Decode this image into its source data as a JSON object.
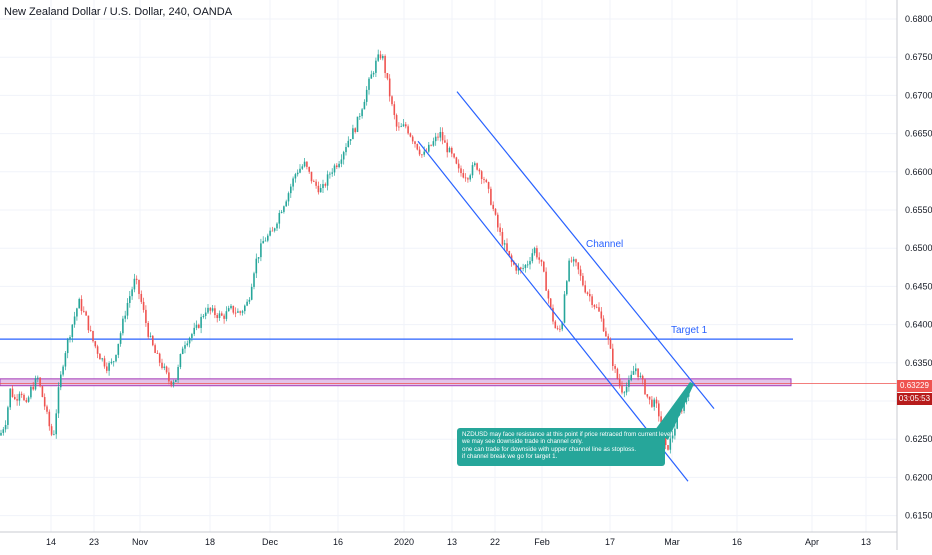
{
  "chart": {
    "title": "New Zealand Dollar / U.S. Dollar, 240, OANDA",
    "current_price_label": "0.63229",
    "countdown_label": "03:05:53",
    "channel_label": "Channel",
    "target_label": "Target 1",
    "annotation_lines": [
      "NZDUSD may face resistance at this point if price retraced from current level",
      "we may see downside trade in channel only.",
      "one can trade for downside with upper channel line as stoploss.",
      "if channel break we go for target 1."
    ]
  },
  "colors": {
    "up": "#26a69a",
    "down": "#ef5350",
    "channel": "#2962ff",
    "target": "#2962ff",
    "zone_fill": "#e1bee7",
    "zone_border": "#9c27b0",
    "price_tag": "#ef5350",
    "countdown_tag": "#b71c1c",
    "annotation_bg": "#26a69a"
  },
  "chart_data": {
    "type": "candlestick",
    "y_ticks": [
      "0.68000",
      "0.67500",
      "0.67000",
      "0.66500",
      "0.66000",
      "0.65500",
      "0.65000",
      "0.64500",
      "0.64000",
      "0.63500",
      "0.63000",
      "0.62500",
      "0.62000",
      "0.61500"
    ],
    "y_range": [
      0.6135,
      0.6835
    ],
    "x_ticks": [
      "14",
      "23",
      "Nov",
      "18",
      "Dec",
      "16",
      "2020",
      "13",
      "22",
      "Feb",
      "17",
      "Mar",
      "16",
      "Apr",
      "13"
    ],
    "path": [
      [
        0,
        0.6255
      ],
      [
        0.7,
        0.6275
      ],
      [
        1.2,
        0.6315
      ],
      [
        1.8,
        0.63
      ],
      [
        2.4,
        0.6318
      ],
      [
        3.0,
        0.629
      ],
      [
        3.6,
        0.6315
      ],
      [
        4.4,
        0.633
      ],
      [
        5.2,
        0.6295
      ],
      [
        5.8,
        0.6265
      ],
      [
        6.2,
        0.625
      ],
      [
        6.8,
        0.631
      ],
      [
        7.5,
        0.636
      ],
      [
        8.3,
        0.6395
      ],
      [
        9.2,
        0.643
      ],
      [
        10.0,
        0.641
      ],
      [
        10.8,
        0.638
      ],
      [
        11.6,
        0.636
      ],
      [
        12.5,
        0.6345
      ],
      [
        13.2,
        0.635
      ],
      [
        14.0,
        0.6385
      ],
      [
        14.8,
        0.6425
      ],
      [
        15.8,
        0.646
      ],
      [
        16.6,
        0.6425
      ],
      [
        17.4,
        0.6385
      ],
      [
        18.2,
        0.636
      ],
      [
        19.0,
        0.6345
      ],
      [
        19.8,
        0.6325
      ],
      [
        20.6,
        0.633
      ],
      [
        21.4,
        0.6375
      ],
      [
        22.2,
        0.6385
      ],
      [
        23.0,
        0.6395
      ],
      [
        24.0,
        0.642
      ],
      [
        25.0,
        0.6415
      ],
      [
        26.0,
        0.641
      ],
      [
        27.0,
        0.642
      ],
      [
        28.0,
        0.6415
      ],
      [
        29.0,
        0.643
      ],
      [
        29.8,
        0.648
      ],
      [
        30.8,
        0.651
      ],
      [
        31.8,
        0.652
      ],
      [
        32.6,
        0.6545
      ],
      [
        33.6,
        0.657
      ],
      [
        34.6,
        0.66
      ],
      [
        35.6,
        0.661
      ],
      [
        36.6,
        0.6585
      ],
      [
        37.6,
        0.6575
      ],
      [
        38.6,
        0.66
      ],
      [
        39.6,
        0.6615
      ],
      [
        40.6,
        0.664
      ],
      [
        41.6,
        0.666
      ],
      [
        42.4,
        0.669
      ],
      [
        43.2,
        0.672
      ],
      [
        44.0,
        0.6745
      ],
      [
        44.6,
        0.6755
      ],
      [
        45.2,
        0.672
      ],
      [
        45.8,
        0.6685
      ],
      [
        46.4,
        0.6655
      ],
      [
        47.4,
        0.666
      ],
      [
        48.4,
        0.664
      ],
      [
        49.4,
        0.662
      ],
      [
        50.4,
        0.6635
      ],
      [
        51.4,
        0.665
      ],
      [
        52.0,
        0.6635
      ],
      [
        52.8,
        0.662
      ],
      [
        53.6,
        0.66
      ],
      [
        54.6,
        0.6595
      ],
      [
        55.6,
        0.661
      ],
      [
        56.6,
        0.659
      ],
      [
        57.4,
        0.656
      ],
      [
        58.2,
        0.6525
      ],
      [
        59.0,
        0.65
      ],
      [
        59.8,
        0.648
      ],
      [
        60.8,
        0.647
      ],
      [
        61.6,
        0.648
      ],
      [
        62.4,
        0.65
      ],
      [
        63.2,
        0.648
      ],
      [
        63.8,
        0.645
      ],
      [
        64.4,
        0.6415
      ],
      [
        65.0,
        0.639
      ],
      [
        65.6,
        0.6395
      ],
      [
        66.0,
        0.645
      ],
      [
        66.6,
        0.6485
      ],
      [
        67.4,
        0.6475
      ],
      [
        68.2,
        0.645
      ],
      [
        69.0,
        0.6435
      ],
      [
        70.0,
        0.6415
      ],
      [
        71.0,
        0.638
      ],
      [
        71.8,
        0.634
      ],
      [
        72.6,
        0.6315
      ],
      [
        73.4,
        0.632
      ],
      [
        74.2,
        0.6345
      ],
      [
        75.0,
        0.6325
      ],
      [
        75.8,
        0.63
      ],
      [
        76.6,
        0.6295
      ],
      [
        77.2,
        0.6275
      ],
      [
        77.8,
        0.6235
      ],
      [
        78.4,
        0.625
      ],
      [
        79.2,
        0.628
      ],
      [
        80.0,
        0.63
      ],
      [
        80.6,
        0.6323
      ]
    ],
    "channel_upper": [
      [
        0.6705,
        0.629
      ]
    ],
    "channel_lower": [
      [
        0.664,
        0.6195
      ]
    ],
    "target_1": 0.6381,
    "resistance_zone": [
      0.632,
      0.6329
    ],
    "current_price": 0.63229
  }
}
